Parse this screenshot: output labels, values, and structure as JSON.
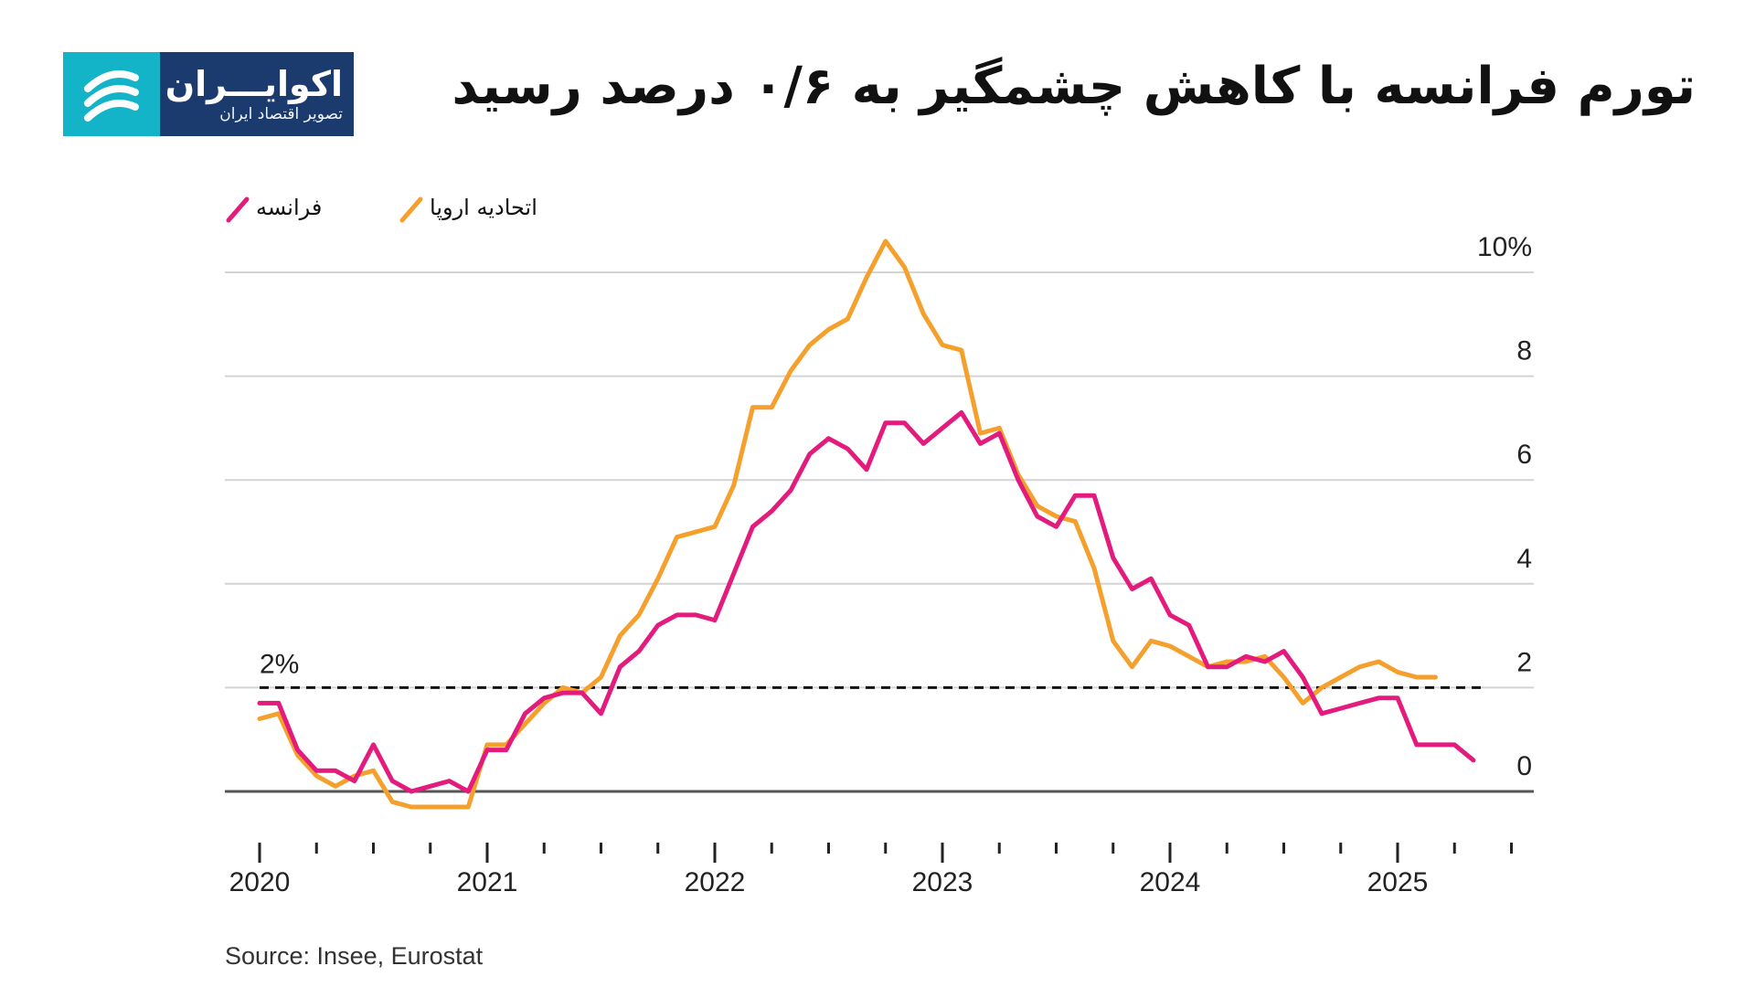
{
  "header": {
    "title": "تورم فرانسه با کاهش چشمگیر به ۰/۶ درصد رسید"
  },
  "logo": {
    "name": "اکوایـــران",
    "tagline": "تصویر اقتصاد ایران",
    "colors": {
      "navy": "#1b3a6e",
      "teal": "#14b4c8"
    }
  },
  "chart_data": {
    "type": "line",
    "title": "",
    "xlabel": "",
    "ylabel": "",
    "x_start": "2020-01",
    "x_frequency": "monthly",
    "x_ticks": [
      "2020",
      "2021",
      "2022",
      "2023",
      "2024",
      "2025"
    ],
    "y_ticks": [
      "10%",
      "8",
      "6",
      "4",
      "2",
      "0"
    ],
    "ylim": [
      -1,
      10.5
    ],
    "grid": true,
    "legend_position": "top-left",
    "reference_line": {
      "value": 2,
      "label": "2%",
      "style": "dashed"
    },
    "series": [
      {
        "name": "فرانسه",
        "color": "#e31b7d",
        "values": [
          1.7,
          1.7,
          0.8,
          0.4,
          0.4,
          0.2,
          0.9,
          0.2,
          0.0,
          0.1,
          0.2,
          0.0,
          0.8,
          0.8,
          1.5,
          1.8,
          1.9,
          1.9,
          1.5,
          2.4,
          2.7,
          3.2,
          3.4,
          3.4,
          3.3,
          4.2,
          5.1,
          5.4,
          5.8,
          6.5,
          6.8,
          6.6,
          6.2,
          7.1,
          7.1,
          6.7,
          7.0,
          7.3,
          6.7,
          6.9,
          6.0,
          5.3,
          5.1,
          5.7,
          5.7,
          4.5,
          3.9,
          4.1,
          3.4,
          3.2,
          2.4,
          2.4,
          2.6,
          2.5,
          2.7,
          2.2,
          1.5,
          1.6,
          1.7,
          1.8,
          1.8,
          0.9,
          0.9,
          0.9,
          0.6
        ]
      },
      {
        "name": "اتحادیه اروپا",
        "color": "#f5a02c",
        "values": [
          1.4,
          1.5,
          0.7,
          0.3,
          0.1,
          0.3,
          0.4,
          -0.2,
          -0.3,
          -0.3,
          -0.3,
          -0.3,
          0.9,
          0.9,
          1.3,
          1.7,
          2.0,
          1.9,
          2.2,
          3.0,
          3.4,
          4.1,
          4.9,
          5.0,
          5.1,
          5.9,
          7.4,
          7.4,
          8.1,
          8.6,
          8.9,
          9.1,
          9.9,
          10.6,
          10.1,
          9.2,
          8.6,
          8.5,
          6.9,
          7.0,
          6.1,
          5.5,
          5.3,
          5.2,
          4.3,
          2.9,
          2.4,
          2.9,
          2.8,
          2.6,
          2.4,
          2.5,
          2.5,
          2.6,
          2.2,
          1.7,
          2.0,
          2.2,
          2.4,
          2.5,
          2.3,
          2.2,
          2.2
        ]
      }
    ]
  },
  "source": {
    "text": "Source: Insee, Eurostat"
  }
}
